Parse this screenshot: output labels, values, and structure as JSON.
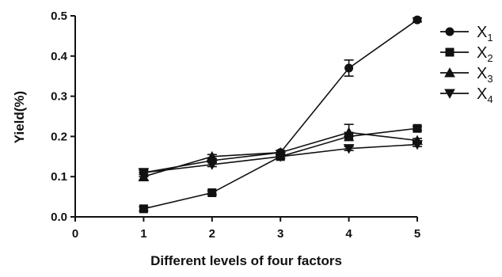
{
  "chart_data": {
    "type": "line",
    "xlabel": "Different levels of four factors",
    "ylabel": "Yield(%)",
    "xlim": [
      0,
      5
    ],
    "ylim": [
      0.0,
      0.5
    ],
    "x_ticks": [
      "0",
      "1",
      "2",
      "3",
      "4",
      "5"
    ],
    "y_ticks": [
      "0.0",
      "0.1",
      "0.2",
      "0.3",
      "0.4",
      "0.5"
    ],
    "grid": false,
    "legend_position": "top-right",
    "series": [
      {
        "name": "X1",
        "name_main": "X",
        "name_sub": "1",
        "marker": "circle",
        "x": [
          1,
          2,
          3,
          4,
          5
        ],
        "values": [
          0.11,
          0.14,
          0.16,
          0.37,
          0.49
        ],
        "error": [
          0.01,
          0.005,
          0.005,
          0.02,
          0.005
        ]
      },
      {
        "name": "X2",
        "name_main": "X",
        "name_sub": "2",
        "marker": "square",
        "x": [
          1,
          2,
          3,
          4,
          5
        ],
        "values": [
          0.02,
          0.06,
          0.15,
          0.2,
          0.22
        ],
        "error": [
          0.005,
          0.005,
          0.005,
          0.01,
          0.005
        ]
      },
      {
        "name": "X3",
        "name_main": "X",
        "name_sub": "3",
        "marker": "triangle-up",
        "x": [
          1,
          2,
          3,
          4,
          5
        ],
        "values": [
          0.1,
          0.15,
          0.16,
          0.21,
          0.19
        ],
        "error": [
          0.01,
          0.005,
          0.005,
          0.02,
          0.005
        ]
      },
      {
        "name": "X4",
        "name_main": "X",
        "name_sub": "4",
        "marker": "triangle-down",
        "x": [
          1,
          2,
          3,
          4,
          5
        ],
        "values": [
          0.11,
          0.13,
          0.15,
          0.17,
          0.18
        ],
        "error": [
          0.005,
          0.005,
          0.005,
          0.005,
          0.005
        ]
      }
    ]
  },
  "colors": {
    "ink": "#111111",
    "background": "#ffffff"
  }
}
